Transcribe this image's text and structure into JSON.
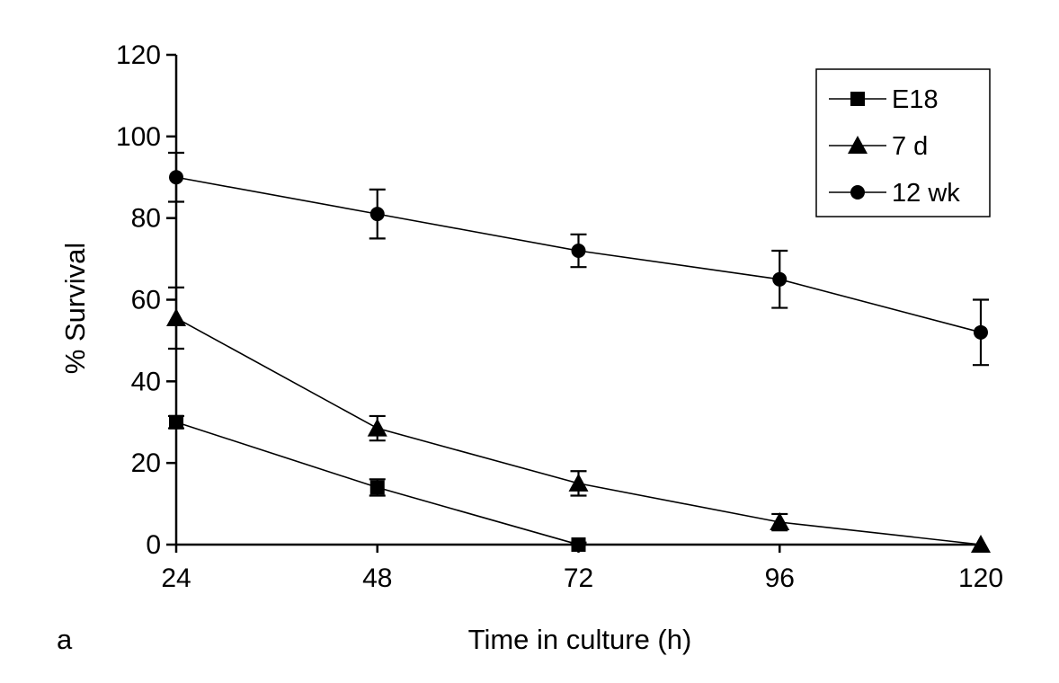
{
  "panel_label": "a",
  "chart_data": {
    "type": "line",
    "xlabel": "Time in culture (h)",
    "ylabel": "% Survival",
    "x": [
      24,
      48,
      72,
      96,
      120
    ],
    "xlim": [
      24,
      120
    ],
    "ylim": [
      0,
      120
    ],
    "x_ticks": [
      "24",
      "48",
      "72",
      "96",
      "120"
    ],
    "y_ticks": [
      "0",
      "20",
      "40",
      "60",
      "80",
      "100",
      "120"
    ],
    "grid": false,
    "legend_position": "top-right",
    "series": [
      {
        "name": "E18",
        "marker": "square",
        "x": [
          24,
          48,
          72
        ],
        "values": [
          30,
          14,
          0
        ],
        "errors": [
          1.5,
          2,
          0.5
        ]
      },
      {
        "name": "7 d",
        "marker": "triangle",
        "x": [
          24,
          48,
          72,
          96,
          120
        ],
        "values": [
          55.5,
          28.5,
          15,
          5.5,
          0
        ],
        "errors": [
          7.5,
          3,
          3,
          2,
          0
        ]
      },
      {
        "name": "12 wk",
        "marker": "circle",
        "x": [
          24,
          48,
          72,
          96,
          120
        ],
        "values": [
          90,
          81,
          72,
          65,
          52
        ],
        "errors": [
          6,
          6,
          4,
          7,
          8
        ]
      }
    ]
  }
}
